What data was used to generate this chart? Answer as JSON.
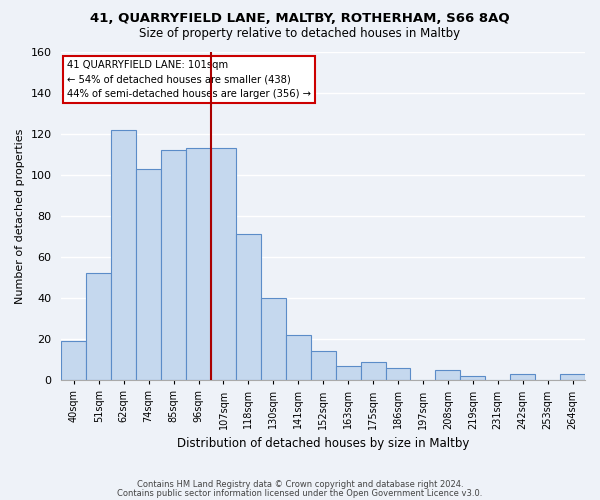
{
  "title": "41, QUARRYFIELD LANE, MALTBY, ROTHERHAM, S66 8AQ",
  "subtitle": "Size of property relative to detached houses in Maltby",
  "xlabel": "Distribution of detached houses by size in Maltby",
  "ylabel": "Number of detached properties",
  "categories": [
    "40sqm",
    "51sqm",
    "62sqm",
    "74sqm",
    "85sqm",
    "96sqm",
    "107sqm",
    "118sqm",
    "130sqm",
    "141sqm",
    "152sqm",
    "163sqm",
    "175sqm",
    "186sqm",
    "197sqm",
    "208sqm",
    "219sqm",
    "231sqm",
    "242sqm",
    "253sqm",
    "264sqm"
  ],
  "values": [
    19,
    52,
    122,
    103,
    112,
    113,
    113,
    71,
    40,
    22,
    14,
    7,
    9,
    6,
    0,
    5,
    2,
    0,
    3,
    0,
    3
  ],
  "bar_color": "#c5d8ee",
  "bar_edge_color": "#5b8cc8",
  "highlight_line_color": "#aa0000",
  "annotation_title": "41 QUARRYFIELD LANE: 101sqm",
  "annotation_line1": "← 54% of detached houses are smaller (438)",
  "annotation_line2": "44% of semi-detached houses are larger (356) →",
  "annotation_box_edge": "#cc0000",
  "ylim": [
    0,
    160
  ],
  "yticks": [
    0,
    20,
    40,
    60,
    80,
    100,
    120,
    140,
    160
  ],
  "footer1": "Contains HM Land Registry data © Crown copyright and database right 2024.",
  "footer2": "Contains public sector information licensed under the Open Government Licence v3.0.",
  "background_color": "#eef2f8",
  "plot_background": "#eef2f8",
  "grid_color": "#ffffff"
}
